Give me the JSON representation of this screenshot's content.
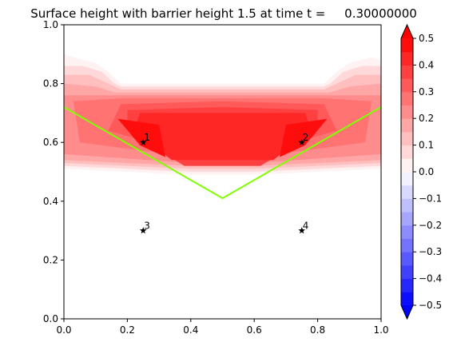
{
  "chart_data": {
    "type": "heatmap",
    "title": "Surface height with barrier height 1.5 at time t =     0.30000000",
    "xlabel": "",
    "ylabel": "",
    "xlim": [
      0.0,
      1.0
    ],
    "ylim": [
      0.0,
      1.0
    ],
    "x_ticks": [
      "0.0",
      "0.2",
      "0.4",
      "0.6",
      "0.8",
      "1.0"
    ],
    "y_ticks": [
      "0.0",
      "0.2",
      "0.4",
      "0.6",
      "0.8",
      "1.0"
    ],
    "x_tick_values": [
      0.0,
      0.2,
      0.4,
      0.6,
      0.8,
      1.0
    ],
    "y_tick_values": [
      0.0,
      0.2,
      0.4,
      0.6,
      0.8,
      1.0
    ],
    "grid": false,
    "colorbar": {
      "vmin": -0.5,
      "vmax": 0.5,
      "levels": 20,
      "extend": "both",
      "tick_values": [
        0.5,
        0.4,
        0.3,
        0.2,
        0.1,
        0.0,
        -0.1,
        -0.2,
        -0.3,
        -0.4,
        -0.5
      ],
      "tick_labels": [
        "0.5",
        "0.4",
        "0.3",
        "0.2",
        "0.1",
        "0.0",
        "−0.1",
        "−0.2",
        "−0.3",
        "−0.4",
        "−0.5"
      ],
      "colormap": "bwr"
    },
    "bands": [
      {
        "level_lo": 0.025,
        "points": [
          [
            0.0,
            0.51
          ],
          [
            0.2,
            0.5
          ],
          [
            0.4,
            0.49
          ],
          [
            0.5,
            0.49
          ],
          [
            0.6,
            0.49
          ],
          [
            0.8,
            0.5
          ],
          [
            1.0,
            0.51
          ],
          [
            1.0,
            0.88
          ],
          [
            0.97,
            0.89
          ],
          [
            0.9,
            0.87
          ],
          [
            0.86,
            0.84
          ],
          [
            0.82,
            0.8
          ],
          [
            0.5,
            0.8
          ],
          [
            0.18,
            0.8
          ],
          [
            0.14,
            0.84
          ],
          [
            0.1,
            0.87
          ],
          [
            0.03,
            0.89
          ],
          [
            0.0,
            0.9
          ]
        ]
      },
      {
        "level_lo": 0.075,
        "points": [
          [
            0.0,
            0.52
          ],
          [
            0.4,
            0.5
          ],
          [
            0.6,
            0.5
          ],
          [
            1.0,
            0.52
          ],
          [
            1.0,
            0.86
          ],
          [
            0.94,
            0.86
          ],
          [
            0.88,
            0.84
          ],
          [
            0.84,
            0.8
          ],
          [
            0.82,
            0.79
          ],
          [
            0.18,
            0.79
          ],
          [
            0.16,
            0.8
          ],
          [
            0.12,
            0.84
          ],
          [
            0.06,
            0.86
          ],
          [
            0.0,
            0.86
          ]
        ]
      },
      {
        "level_lo": 0.125,
        "points": [
          [
            0.0,
            0.53
          ],
          [
            0.4,
            0.51
          ],
          [
            0.6,
            0.51
          ],
          [
            1.0,
            0.53
          ],
          [
            1.0,
            0.83
          ],
          [
            0.92,
            0.83
          ],
          [
            0.86,
            0.8
          ],
          [
            0.82,
            0.78
          ],
          [
            0.18,
            0.78
          ],
          [
            0.14,
            0.8
          ],
          [
            0.08,
            0.83
          ],
          [
            0.0,
            0.83
          ]
        ]
      },
      {
        "level_lo": 0.175,
        "points": [
          [
            0.0,
            0.54
          ],
          [
            0.4,
            0.52
          ],
          [
            0.6,
            0.52
          ],
          [
            1.0,
            0.54
          ],
          [
            1.0,
            0.8
          ],
          [
            0.9,
            0.79
          ],
          [
            0.84,
            0.77
          ],
          [
            0.16,
            0.77
          ],
          [
            0.1,
            0.79
          ],
          [
            0.0,
            0.8
          ]
        ]
      },
      {
        "level_lo": 0.225,
        "points": [
          [
            0.0,
            0.56
          ],
          [
            0.4,
            0.53
          ],
          [
            0.6,
            0.53
          ],
          [
            1.0,
            0.56
          ],
          [
            1.0,
            0.76
          ],
          [
            0.86,
            0.76
          ],
          [
            0.14,
            0.76
          ],
          [
            0.0,
            0.76
          ]
        ]
      },
      {
        "level_lo": 0.275,
        "points": [
          [
            0.05,
            0.6
          ],
          [
            0.4,
            0.55
          ],
          [
            0.6,
            0.55
          ],
          [
            0.95,
            0.6
          ],
          [
            0.97,
            0.74
          ],
          [
            0.82,
            0.75
          ],
          [
            0.18,
            0.75
          ],
          [
            0.03,
            0.74
          ]
        ]
      },
      {
        "level_lo": 0.325,
        "points": [
          [
            0.14,
            0.64
          ],
          [
            0.4,
            0.56
          ],
          [
            0.6,
            0.56
          ],
          [
            0.86,
            0.64
          ],
          [
            0.82,
            0.73
          ],
          [
            0.5,
            0.74
          ],
          [
            0.18,
            0.73
          ]
        ]
      },
      {
        "level_lo": 0.375,
        "points": [
          [
            0.2,
            0.64
          ],
          [
            0.38,
            0.52
          ],
          [
            0.62,
            0.52
          ],
          [
            0.8,
            0.64
          ],
          [
            0.8,
            0.71
          ],
          [
            0.5,
            0.72
          ],
          [
            0.2,
            0.71
          ]
        ]
      },
      {
        "level_lo": 0.425,
        "points": [
          [
            0.22,
            0.64
          ],
          [
            0.34,
            0.54
          ],
          [
            0.66,
            0.54
          ],
          [
            0.78,
            0.64
          ],
          [
            0.76,
            0.7
          ],
          [
            0.5,
            0.7
          ],
          [
            0.24,
            0.7
          ]
        ]
      },
      {
        "level_lo": 0.475,
        "points": [
          [
            0.17,
            0.68
          ],
          [
            0.24,
            0.59
          ],
          [
            0.32,
            0.55
          ],
          [
            0.3,
            0.66
          ]
        ]
      },
      {
        "level_lo": 0.475,
        "points": [
          [
            0.83,
            0.68
          ],
          [
            0.76,
            0.59
          ],
          [
            0.68,
            0.55
          ],
          [
            0.7,
            0.66
          ]
        ]
      }
    ],
    "barrier_line": {
      "color": "#7fff00",
      "points": [
        [
          0.0,
          0.72
        ],
        [
          0.5,
          0.41
        ],
        [
          1.0,
          0.72
        ]
      ]
    },
    "markers": [
      {
        "label": "1",
        "x": 0.25,
        "y": 0.6
      },
      {
        "label": "2",
        "x": 0.75,
        "y": 0.6
      },
      {
        "label": "3",
        "x": 0.25,
        "y": 0.3
      },
      {
        "label": "4",
        "x": 0.75,
        "y": 0.3
      }
    ]
  }
}
